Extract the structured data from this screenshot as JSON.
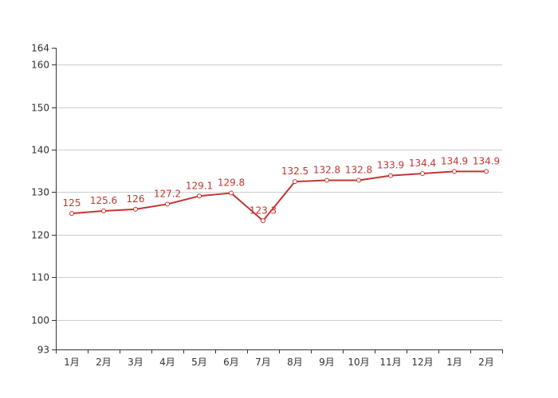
{
  "chart_data": {
    "type": "line",
    "title": "",
    "xlabel": "",
    "ylabel": "",
    "categories": [
      "1月",
      "2月",
      "3月",
      "4月",
      "5月",
      "6月",
      "7月",
      "8月",
      "9月",
      "10月",
      "11月",
      "12月",
      "1月",
      "2月"
    ],
    "series": [
      {
        "values": [
          125,
          125.6,
          126,
          127.2,
          129.1,
          129.8,
          123.3,
          132.5,
          132.8,
          132.8,
          133.9,
          134.4,
          134.9,
          134.9
        ],
        "data_labels": [
          "125",
          "125.6",
          "126",
          "127.2",
          "129.1",
          "129.8",
          "123.3",
          "132.5",
          "132.8",
          "132.8",
          "133.9",
          "134.4",
          "134.9",
          "134.9"
        ],
        "color": "#c23531"
      }
    ],
    "ylim": [
      93,
      164
    ],
    "yticks": [
      93,
      100,
      110,
      120,
      130,
      140,
      150,
      160,
      164
    ],
    "ytick_labels": [
      "93",
      "100",
      "110",
      "120",
      "130",
      "140",
      "150",
      "160",
      "164"
    ],
    "grid": true,
    "legend": "none",
    "colors": {
      "line": "#c23531",
      "grid": "#cccccc",
      "axis": "#333333",
      "text": "#333333"
    }
  }
}
